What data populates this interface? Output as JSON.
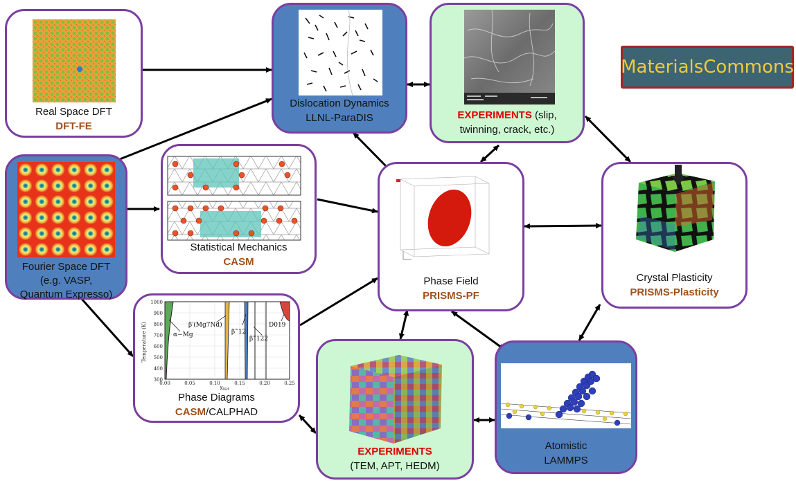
{
  "logo": {
    "text": "MaterialsCommons"
  },
  "nodes": {
    "real_space_dft": {
      "label": "Real Space DFT",
      "code": "DFT-FE"
    },
    "dislocation_dynamics": {
      "label": "Dislocation Dynamics",
      "code": "LLNL-ParaDIS"
    },
    "experiments_top": {
      "highlight": "EXPERIMENTS",
      "line1_rest": "(slip,",
      "line2": "twinning, crack, etc.)"
    },
    "fourier_space_dft": {
      "line1": "Fourier Space DFT",
      "line2": "(e.g. VASP,",
      "line3": "Quantum Expresso)"
    },
    "statistical_mechanics": {
      "label": "Statistical Mechanics",
      "code": "CASM"
    },
    "phase_field": {
      "label": "Phase Field",
      "code": "PRISMS-PF"
    },
    "crystal_plasticity": {
      "label": "Crystal Plasticity",
      "code": "PRISMS-Plasticity"
    },
    "phase_diagrams": {
      "label": "Phase Diagrams",
      "code": "CASM",
      "code_rest": "/CALPHAD"
    },
    "experiments_bottom": {
      "highlight": "EXPERIMENTS",
      "line2": "(TEM, APT, HEDM)"
    },
    "atomistic": {
      "label": "Atomistic",
      "code": "LAMMPS"
    }
  },
  "phase_diagram_plot": {
    "y_ticks": [
      "1000",
      "900",
      "800",
      "700",
      "600",
      "500",
      "400",
      "300"
    ],
    "x_ticks": [
      "0.00",
      "0.05",
      "0.10",
      "0.15",
      "0.20",
      "0.25"
    ],
    "ylabel": "Temperature (K)",
    "xlabel": "x",
    "xlabel_sub": "Nd",
    "phases": [
      "α−Mg",
      "β′(Mg7Nd)",
      "β‴12",
      "β‴122",
      "D019"
    ]
  },
  "colors": {
    "node_border": "#7a3fa0",
    "blue_fill": "#4f80bd",
    "green_fill": "#ccf7d2",
    "code_text": "#a0521d",
    "experiments_text": "#e00000",
    "logo_bg": "#3c6473",
    "logo_text": "#f1ca3a"
  }
}
